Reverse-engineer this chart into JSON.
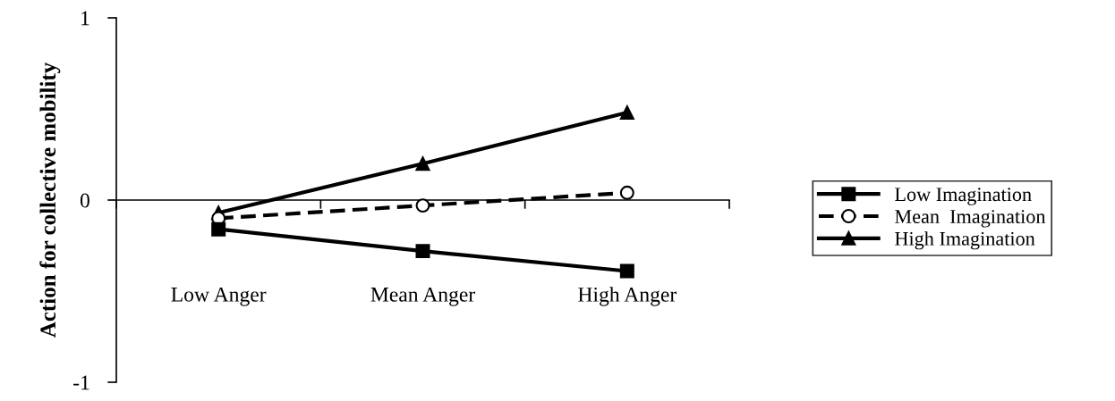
{
  "chart_data": {
    "type": "line",
    "ylabel": "Action for collective mobility",
    "categories": [
      "Low Anger",
      "Mean Anger",
      "High Anger"
    ],
    "ylim": [
      -1,
      1
    ],
    "yticks": [
      -1,
      0,
      1
    ],
    "legend": "right",
    "series": [
      {
        "name": "Low Imagination",
        "color": "#000000",
        "values": [
          -0.16,
          -0.28,
          -0.39
        ],
        "marker": "square",
        "line_style": "solid"
      },
      {
        "name": "Mean  Imagination",
        "color": "#000000",
        "values": [
          -0.1,
          -0.03,
          0.04
        ],
        "marker": "circle",
        "line_style": "dashed"
      },
      {
        "name": "High Imagination",
        "color": "#000000",
        "values": [
          -0.07,
          0.2,
          0.48
        ],
        "marker": "triangle",
        "line_style": "solid"
      }
    ]
  }
}
